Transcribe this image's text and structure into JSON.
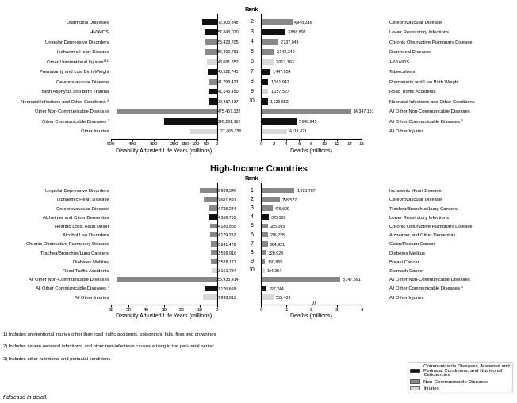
{
  "chart_data": [
    {
      "type": "bar",
      "orientation": "horizontal",
      "categories": [
        "Diarrhoeal Diseases",
        "HIV/AIDS",
        "Unipolar Depressive Disorders",
        "Ischaemic Heart Disease",
        "Other Unintentional Injuries¹⁽¹⁾",
        "Prematurity and Low Birth Weight",
        "Cerebrovascular Disease",
        "Birth Asphyxia and Birth Trauma",
        "Neonatal Infections and Other Conditions ²",
        "Other Non-Communicable Diseases",
        "Other Communicable Diseases ³",
        "Other Injuries"
      ],
      "values": [
        72.306348,
        57.84307,
        55.423705,
        54.800761,
        48.681857,
        43.522745,
        41.793423,
        41.14545,
        39.867437,
        475.457132,
        248.291162,
        127.465356
      ],
      "value_labels": [
        "72,306,348",
        "57,843,070",
        "55,423,705",
        "54,800,761",
        "48,681,857",
        "43,522,745",
        "41,793,423",
        "41,145,450",
        "39,867,437",
        "475,457,132",
        "248,291,162",
        "127,465,356"
      ],
      "data_labels": true,
      "colors": [
        "#111111",
        "#111111",
        "#888888",
        "#888888",
        "#d8d8d8",
        "#111111",
        "#888888",
        "#111111",
        "#111111",
        "#888888",
        "#111111",
        "#d8d8d8"
      ],
      "xlabel": "Disability Adjusted Life Years (millions)",
      "xlim": [
        500,
        0
      ],
      "xticks": [
        500,
        400,
        300,
        200,
        150,
        100,
        50,
        0
      ],
      "rank_title": "Rank",
      "ranks": [
        "2",
        "3",
        "4",
        "5",
        "6",
        "7",
        "8",
        "9",
        "10",
        null,
        null,
        null
      ]
    },
    {
      "type": "bar",
      "orientation": "horizontal",
      "categories": [
        "Cerebrovascular Disease",
        "Lower Respiratory Infections",
        "Chronic Obstructive Pulmonary Disease",
        "Diarrhoeal Diseases",
        "HIV/AIDS",
        "Tuberculosis",
        "Prematurity and Low Birth Weight",
        "Road Traffic Accidents",
        "Neonatal Infections and Other Conditions",
        "All Other Non-Communicable Diseases",
        "All Other Communicable Diseases ³",
        "All Other Injuries"
      ],
      "values": [
        4.948316,
        3.866897,
        2.737049,
        2.14834,
        2.017193,
        1.447854,
        1.161947,
        1.157527,
        1.129652,
        14.347151,
        5.646945,
        4.111421
      ],
      "value_labels": [
        "4,948,316",
        "3,866,897",
        "2,737,049",
        "2,148,340",
        "2,017,193",
        "1,447,854",
        "1,161,947",
        "1,157,527",
        "1,129,652",
        "14,347,151",
        "5,646,945",
        "4,111,421"
      ],
      "data_labels": true,
      "colors": [
        "#888888",
        "#111111",
        "#888888",
        "#888888",
        "#d8d8d8",
        "#111111",
        "#111111",
        "#d8d8d8",
        "#111111",
        "#888888",
        "#111111",
        "#d8d8d8"
      ],
      "xlabel": "Deaths (millions)",
      "xlim": [
        0,
        16
      ],
      "xticks": [
        0,
        2,
        4,
        6,
        8,
        10,
        12,
        14,
        16
      ]
    },
    {
      "type": "bar",
      "orientation": "horizontal",
      "title": "High-Income Countries",
      "categories": [
        "Unipolar Depressive Disorders",
        "Ischaemic Heart Disease",
        "Cerebrovascular Disease",
        "Alzheimer and Other Dementias",
        "Hearing Loss, Adult Onset",
        "Alcohol Use Disorders",
        "Chronic Obstructive Pulmonary Disease",
        "Trachea/Bronchus/Lung Cancers",
        "Diabetes Mellitus",
        "Road Traffic Accidents",
        "All Other Non-Communicable Diseases",
        "All Other Communicable Diseases ³",
        "All Other Injuries"
      ],
      "values": [
        9.939349,
        7.681891,
        4.738284,
        4.369755,
        4.180888,
        4.179262,
        3.641476,
        3.599916,
        3.588177,
        3.101784,
        56.935414,
        7.176668,
        7.998811
      ],
      "value_labels": [
        "9,939,349",
        "7,681,891",
        "4,738,284",
        "4,369,755",
        "4,180,888",
        "4,179,262",
        "3,641,476",
        "3,599,916",
        "3,588,177",
        "3,101,784",
        "56,935,414",
        "7,176,668",
        "7,998,811"
      ],
      "data_labels": true,
      "colors": [
        "#888888",
        "#888888",
        "#888888",
        "#111111",
        "#888888",
        "#888888",
        "#888888",
        "#888888",
        "#888888",
        "#d8d8d8",
        "#888888",
        "#111111",
        "#d8d8d8"
      ],
      "xlabel": "Disability Adjusted Life Years (millions)",
      "xlim": [
        60,
        0
      ],
      "xticks": [
        60,
        50,
        40,
        30,
        20,
        10,
        0
      ],
      "rank_title": "Rank",
      "ranks": [
        "1",
        "2",
        "3",
        "4",
        "5",
        "6",
        "7",
        "8",
        "9",
        "10",
        null,
        null,
        null
      ]
    },
    {
      "type": "bar",
      "orientation": "horizontal",
      "categories": [
        "Ischaemic Heart Disease",
        "Cerebrovascular Disease",
        "Trachea/Bronchus/Lung Cancers",
        "Lower Respiratory Infections",
        "Chronic Obstructive Pulmonary Disease",
        "Alzheimer and Other Dementias",
        "Colon/Rectum Cancer",
        "Diabetes Mellitus",
        "Breast Cancer",
        "Stomach Cancer",
        "All Other Non-Communicable Diseases",
        "All Other Communicable Diseases ³",
        "All Other Injuries"
      ],
      "values": [
        1.323767,
        0.758527,
        0.476629,
        0.305188,
        0.285065,
        0.276228,
        0.264921,
        0.220924,
        0.160865,
        0.144254,
        3.147591,
        0.227244,
        0.505403
      ],
      "value_labels": [
        "1,323,767",
        "758,527",
        "476,629",
        "305,188",
        "285,065",
        "276,228",
        "264,921",
        "220,924",
        "160,865",
        "144,254",
        "3,147,591",
        "227,244",
        "505,403"
      ],
      "data_labels": true,
      "colors": [
        "#888888",
        "#888888",
        "#888888",
        "#111111",
        "#888888",
        "#888888",
        "#888888",
        "#888888",
        "#888888",
        "#d8d8d8",
        "#888888",
        "#111111",
        "#d8d8d8"
      ],
      "xlabel": "Deaths (millions)",
      "xlim": [
        0,
        4
      ],
      "xticks": [
        0,
        1,
        2,
        3,
        4
      ],
      "annotations": [
        {
          "text": "//",
          "x": 2.05
        }
      ]
    }
  ],
  "footnotes": [
    "1) Includes unintentional injuries other than road traffic accidents, poisonings, falls, fires and drownings",
    "2) Includes severe neonatal infections, and other non-infectious causes arising in the peri-natal period",
    "3) Includes other nutritional and perinatal conditions"
  ],
  "legend": "lower right",
  "legend_entries": [
    {
      "name": "Communicable Diseases, Maternal and\nPerinatal Conditions, and Nutritional\nDeficiencies",
      "color": "#111111"
    },
    {
      "name": "Non-Communicable Diseases",
      "color": "#888888"
    },
    {
      "name": "Injuries",
      "color": "#d8d8d8"
    }
  ],
  "caption": "f disease in detail."
}
